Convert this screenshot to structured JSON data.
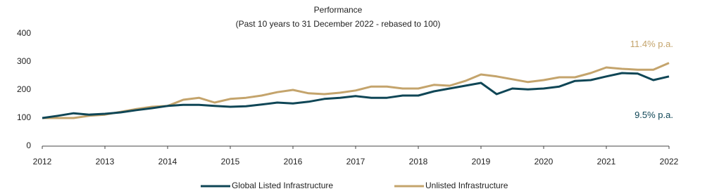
{
  "chart_data": {
    "type": "line",
    "title": "Performance",
    "subtitle": "(Past 10 years to 31 December 2022 - rebased to 100)",
    "x": [
      2012,
      2012.25,
      2012.5,
      2012.75,
      2013,
      2013.25,
      2013.5,
      2013.75,
      2014,
      2014.25,
      2014.5,
      2014.75,
      2015,
      2015.25,
      2015.5,
      2015.75,
      2016,
      2016.25,
      2016.5,
      2016.75,
      2017,
      2017.25,
      2017.5,
      2017.75,
      2018,
      2018.25,
      2018.5,
      2018.75,
      2019,
      2019.25,
      2019.5,
      2019.75,
      2020,
      2020.25,
      2020.5,
      2020.75,
      2021,
      2021.25,
      2021.5,
      2021.75,
      2022
    ],
    "series": [
      {
        "name": "Global Listed Infrastructure",
        "color": "#0f4656",
        "annotation": "9.5% p.a.",
        "values": [
          100,
          108,
          117,
          112,
          115,
          120,
          128,
          135,
          143,
          147,
          147,
          143,
          140,
          142,
          148,
          155,
          152,
          158,
          168,
          172,
          178,
          172,
          172,
          180,
          180,
          195,
          205,
          215,
          225,
          185,
          205,
          202,
          205,
          212,
          232,
          235,
          248,
          260,
          258,
          235,
          248
        ]
      },
      {
        "name": "Unlisted Infrastructure",
        "color": "#c4a46c",
        "annotation": "11.4% p.a.",
        "values": [
          100,
          100,
          100,
          108,
          112,
          122,
          132,
          140,
          143,
          165,
          172,
          155,
          168,
          172,
          180,
          192,
          200,
          188,
          185,
          190,
          198,
          212,
          212,
          205,
          205,
          218,
          215,
          232,
          255,
          248,
          238,
          228,
          235,
          245,
          245,
          260,
          280,
          275,
          272,
          272,
          296
        ]
      }
    ],
    "xlim": [
      2012,
      2022
    ],
    "xticks": [
      2012,
      2013,
      2014,
      2015,
      2016,
      2017,
      2018,
      2019,
      2020,
      2021,
      2022
    ],
    "ylim": [
      0,
      400
    ],
    "yticks": [
      0,
      100,
      200,
      300,
      400
    ],
    "grid": false
  }
}
